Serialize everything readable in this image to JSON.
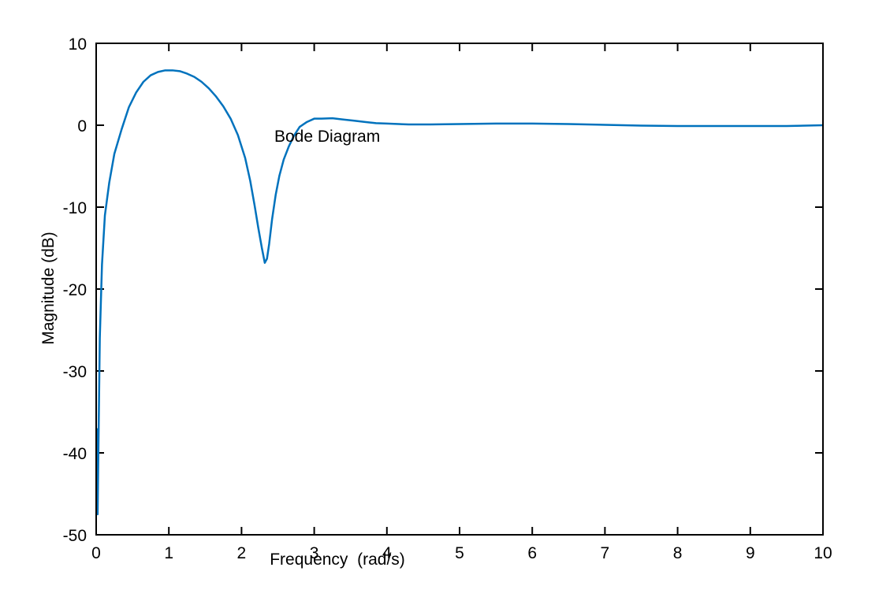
{
  "chart_data": {
    "type": "line",
    "title": "Bode Diagram",
    "xlabel": "Frequency  (rad/s)",
    "ylabel": "Magnitude (dB)",
    "xlim": [
      0,
      10
    ],
    "ylim": [
      -50,
      10
    ],
    "xticks": [
      0,
      1,
      2,
      3,
      4,
      5,
      6,
      7,
      8,
      9,
      10
    ],
    "yticks": [
      10,
      0,
      -10,
      -20,
      -30,
      -40,
      -50
    ],
    "grid": false,
    "series": [
      {
        "color": "#0072bd",
        "x": [
          0.01,
          0.02,
          0.03,
          0.05,
          0.08,
          0.12,
          0.18,
          0.25,
          0.35,
          0.45,
          0.55,
          0.65,
          0.75,
          0.85,
          0.95,
          1.05,
          1.15,
          1.25,
          1.35,
          1.45,
          1.55,
          1.65,
          1.75,
          1.85,
          1.95,
          2.05,
          2.12,
          2.18,
          2.23,
          2.28,
          2.32,
          2.35,
          2.38,
          2.42,
          2.47,
          2.52,
          2.58,
          2.65,
          2.72,
          2.8,
          2.9,
          3.0,
          3.1,
          3.25,
          3.4,
          3.55,
          3.7,
          3.85,
          4.0,
          4.3,
          4.6,
          5.0,
          5.5,
          6.0,
          6.5,
          7.0,
          7.5,
          8.0,
          8.5,
          9.0,
          9.5,
          10.0
        ],
        "y": [
          -37,
          -47.5,
          -40,
          -26,
          -17,
          -11,
          -7,
          -3.5,
          -0.5,
          2.2,
          4.0,
          5.3,
          6.1,
          6.5,
          6.7,
          6.7,
          6.6,
          6.3,
          5.9,
          5.3,
          4.5,
          3.5,
          2.3,
          0.8,
          -1.2,
          -4.0,
          -6.8,
          -9.8,
          -12.5,
          -15.0,
          -16.8,
          -16.3,
          -14.5,
          -11.5,
          -8.5,
          -6.2,
          -4.2,
          -2.6,
          -1.3,
          -0.2,
          0.4,
          0.8,
          0.8,
          0.85,
          0.7,
          0.55,
          0.4,
          0.25,
          0.2,
          0.1,
          0.1,
          0.15,
          0.2,
          0.2,
          0.15,
          0.05,
          -0.05,
          -0.1,
          -0.1,
          -0.1,
          -0.1,
          0.0
        ]
      }
    ]
  }
}
